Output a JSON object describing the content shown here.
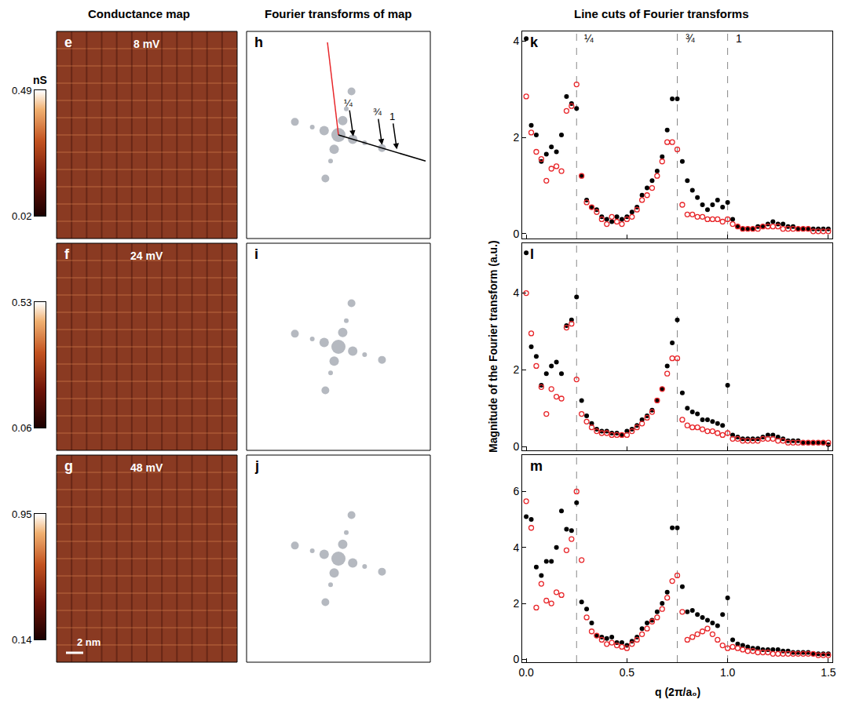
{
  "column_titles": [
    "Conductance map",
    "Fourier transforms of map",
    "Line cuts of Fourier transforms"
  ],
  "unit": "nS",
  "scale_bar": "2 nm",
  "maps": [
    {
      "letter": "e",
      "label": "8 mV",
      "colorbar": {
        "range": [
          0.02,
          0.49
        ],
        "ticks": [
          0.02,
          0.49
        ]
      }
    },
    {
      "letter": "f",
      "label": "24 mV",
      "colorbar": {
        "range": [
          0.06,
          0.53
        ],
        "ticks": [
          0.06,
          0.53
        ]
      }
    },
    {
      "letter": "g",
      "label": "48 mV",
      "colorbar": {
        "range": [
          0.14,
          0.95
        ],
        "ticks": [
          0.14,
          0.95
        ]
      }
    }
  ],
  "fourier": [
    {
      "letter": "h",
      "cut_labels": [
        "¼",
        "¾",
        "1"
      ]
    },
    {
      "letter": "i"
    },
    {
      "letter": "j"
    }
  ],
  "shared_y_title": "Magnitude of the Fourier transform (a.u.)",
  "chart_data": [
    {
      "letter": "k",
      "type": "scatter",
      "tick_labels": "y",
      "x": [
        0,
        0.025,
        0.05,
        0.075,
        0.1,
        0.125,
        0.15,
        0.175,
        0.2,
        0.225,
        0.25,
        0.275,
        0.3,
        0.325,
        0.35,
        0.375,
        0.4,
        0.425,
        0.45,
        0.475,
        0.5,
        0.525,
        0.55,
        0.575,
        0.6,
        0.625,
        0.65,
        0.675,
        0.7,
        0.725,
        0.75,
        0.775,
        0.8,
        0.825,
        0.85,
        0.875,
        0.9,
        0.925,
        0.95,
        0.975,
        1,
        1.025,
        1.05,
        1.075,
        1.1,
        1.125,
        1.15,
        1.175,
        1.2,
        1.225,
        1.25,
        1.275,
        1.3,
        1.325,
        1.35,
        1.375,
        1.4,
        1.425,
        1.45,
        1.475,
        1.5
      ],
      "series": [
        {
          "color": "#000000",
          "marker": "filled circle",
          "values": [
            4.05,
            2.25,
            2.05,
            1.5,
            1.65,
            1.8,
            1.7,
            2.05,
            2.85,
            2.7,
            2.6,
            1.2,
            0.7,
            0.55,
            0.5,
            0.35,
            0.3,
            0.25,
            0.35,
            0.3,
            0.35,
            0.45,
            0.55,
            0.8,
            0.95,
            1.1,
            1.3,
            1.6,
            2.15,
            2.8,
            2.8,
            1.5,
            1.1,
            0.9,
            0.75,
            0.6,
            0.5,
            0.6,
            0.7,
            0.55,
            0.65,
            0.3,
            0.15,
            0.1,
            0.1,
            0.1,
            0.15,
            0.15,
            0.2,
            0.25,
            0.2,
            0.2,
            0.15,
            0.15,
            0.1,
            0.1,
            0.1,
            0.1,
            0.1,
            0.1,
            0.1
          ]
        },
        {
          "color": "#e8262a",
          "marker": "open circle",
          "values": [
            2.85,
            2.1,
            1.7,
            1.55,
            1.1,
            1.35,
            1.4,
            1.3,
            2.55,
            2.65,
            3.1,
            1.2,
            0.65,
            0.55,
            0.45,
            0.3,
            0.2,
            0.35,
            0.25,
            0.2,
            0.3,
            0.35,
            0.5,
            0.7,
            0.8,
            0.95,
            1.2,
            1.5,
            1.9,
            1.9,
            1.75,
            0.6,
            0.4,
            0.4,
            0.35,
            0.35,
            0.3,
            0.3,
            0.3,
            0.25,
            0.3,
            0.2,
            0.15,
            0.1,
            0.1,
            0.1,
            0.1,
            0.15,
            0.15,
            0.15,
            0.15,
            0.1,
            0.1,
            0.1,
            0.1,
            0.1,
            0.1,
            0.05,
            0.05,
            0.05,
            0.05
          ]
        }
      ],
      "xlim": [
        -0.02,
        1.52
      ],
      "xticks": [
        0,
        0.5,
        1,
        1.5
      ],
      "ylim": [
        -0.1,
        4.2
      ],
      "yticks": [
        0,
        2,
        4
      ],
      "vlines": [
        0.25,
        0.75,
        1
      ],
      "vline_labels": [
        "¼",
        "¾",
        "1"
      ]
    },
    {
      "letter": "l",
      "type": "scatter",
      "tick_labels": "y",
      "x": [
        0,
        0.025,
        0.05,
        0.075,
        0.1,
        0.125,
        0.15,
        0.175,
        0.2,
        0.225,
        0.25,
        0.275,
        0.3,
        0.325,
        0.35,
        0.375,
        0.4,
        0.425,
        0.45,
        0.475,
        0.5,
        0.525,
        0.55,
        0.575,
        0.6,
        0.625,
        0.65,
        0.675,
        0.7,
        0.725,
        0.75,
        0.775,
        0.8,
        0.825,
        0.85,
        0.875,
        0.9,
        0.925,
        0.95,
        0.975,
        1,
        1.025,
        1.05,
        1.075,
        1.1,
        1.125,
        1.15,
        1.175,
        1.2,
        1.225,
        1.25,
        1.275,
        1.3,
        1.325,
        1.35,
        1.375,
        1.4,
        1.425,
        1.45,
        1.475,
        1.5
      ],
      "series": [
        {
          "color": "#000000",
          "marker": "filled circle",
          "values": [
            5.05,
            2.6,
            2.35,
            1.6,
            1.9,
            2.1,
            2.2,
            1.9,
            3.15,
            3.3,
            3.9,
            1.2,
            0.8,
            0.6,
            0.45,
            0.4,
            0.4,
            0.35,
            0.35,
            0.3,
            0.4,
            0.45,
            0.55,
            0.7,
            0.8,
            0.95,
            1.2,
            1.5,
            2.1,
            2.7,
            3.3,
            1.4,
            1.0,
            0.9,
            0.85,
            0.7,
            0.7,
            0.65,
            0.6,
            0.55,
            1.6,
            0.3,
            0.25,
            0.2,
            0.2,
            0.2,
            0.2,
            0.25,
            0.3,
            0.3,
            0.25,
            0.2,
            0.15,
            0.15,
            0.15,
            0.1,
            0.1,
            0.1,
            0.1,
            0.1,
            0.05
          ]
        },
        {
          "color": "#e8262a",
          "marker": "open circle",
          "values": [
            4.0,
            2.95,
            2.1,
            1.55,
            0.85,
            1.5,
            1.3,
            1.25,
            3.1,
            3.2,
            1.75,
            0.85,
            0.65,
            0.5,
            0.4,
            0.35,
            0.35,
            0.3,
            0.3,
            0.3,
            0.3,
            0.4,
            0.5,
            0.6,
            0.75,
            0.9,
            1.2,
            1.5,
            1.9,
            2.3,
            2.3,
            0.7,
            0.55,
            0.5,
            0.5,
            0.45,
            0.4,
            0.4,
            0.35,
            0.3,
            0.35,
            0.2,
            0.2,
            0.15,
            0.15,
            0.15,
            0.15,
            0.2,
            0.2,
            0.2,
            0.15,
            0.15,
            0.1,
            0.1,
            0.1,
            0.1,
            0.1,
            0.1,
            0.1,
            0.1,
            0.1
          ]
        }
      ],
      "xlim": [
        -0.02,
        1.52
      ],
      "xticks": [
        0,
        0.5,
        1,
        1.5
      ],
      "ylim": [
        -0.1,
        5.3
      ],
      "yticks": [
        0,
        2,
        4
      ],
      "vlines": [
        0.25,
        0.75,
        1
      ]
    },
    {
      "letter": "m",
      "type": "scatter",
      "x": [
        0,
        0.025,
        0.05,
        0.075,
        0.1,
        0.125,
        0.15,
        0.175,
        0.2,
        0.225,
        0.25,
        0.275,
        0.3,
        0.325,
        0.35,
        0.375,
        0.4,
        0.425,
        0.45,
        0.475,
        0.5,
        0.525,
        0.55,
        0.575,
        0.6,
        0.625,
        0.65,
        0.675,
        0.7,
        0.725,
        0.75,
        0.775,
        0.8,
        0.825,
        0.85,
        0.875,
        0.9,
        0.925,
        0.95,
        0.975,
        1,
        1.025,
        1.05,
        1.075,
        1.1,
        1.125,
        1.15,
        1.175,
        1.2,
        1.225,
        1.25,
        1.275,
        1.3,
        1.325,
        1.35,
        1.375,
        1.4,
        1.425,
        1.45,
        1.475,
        1.5
      ],
      "series": [
        {
          "color": "#000000",
          "marker": "filled circle",
          "values": [
            5.1,
            5.0,
            3.3,
            3.0,
            3.5,
            3.5,
            4.0,
            5.3,
            4.65,
            4.6,
            5.6,
            2.05,
            1.8,
            1.3,
            0.85,
            0.8,
            0.75,
            0.8,
            0.6,
            0.6,
            0.5,
            0.65,
            0.8,
            1.1,
            1.3,
            1.4,
            1.7,
            2.0,
            2.4,
            4.7,
            4.7,
            2.6,
            1.7,
            1.75,
            1.6,
            1.5,
            1.4,
            1.3,
            1.2,
            1.6,
            2.2,
            0.7,
            0.55,
            0.5,
            0.45,
            0.4,
            0.4,
            0.35,
            0.35,
            0.35,
            0.35,
            0.3,
            0.3,
            0.25,
            0.25,
            0.25,
            0.25,
            0.2,
            0.2,
            0.2,
            0.2
          ]
        },
        {
          "color": "#e8262a",
          "marker": "open circle",
          "values": [
            5.65,
            4.7,
            1.85,
            2.7,
            2.1,
            2.0,
            2.4,
            2.3,
            3.9,
            4.3,
            6.0,
            3.55,
            1.5,
            1.0,
            0.85,
            0.7,
            0.55,
            0.6,
            0.5,
            0.45,
            0.4,
            0.55,
            0.7,
            0.9,
            1.1,
            1.35,
            1.5,
            1.8,
            2.2,
            2.8,
            3.0,
            1.7,
            0.7,
            0.8,
            0.9,
            1.0,
            1.1,
            0.9,
            0.7,
            0.5,
            0.4,
            0.45,
            0.4,
            0.35,
            0.3,
            0.3,
            0.25,
            0.25,
            0.25,
            0.2,
            0.2,
            0.2,
            0.2,
            0.2,
            0.2,
            0.2,
            0.2,
            0.2,
            0.15,
            0.15,
            0.15
          ]
        }
      ],
      "xlim": [
        -0.02,
        1.52
      ],
      "xticks": [
        {
          "value": 0,
          "label": "0.0"
        },
        0.5,
        {
          "value": 1,
          "label": "1.0"
        },
        1.5
      ],
      "x_title": "q (2π/a₀)",
      "ylim": [
        -0.1,
        7.3
      ],
      "yticks": [
        0,
        2,
        4,
        6
      ],
      "vlines": [
        0.25,
        0.75,
        1
      ]
    }
  ]
}
